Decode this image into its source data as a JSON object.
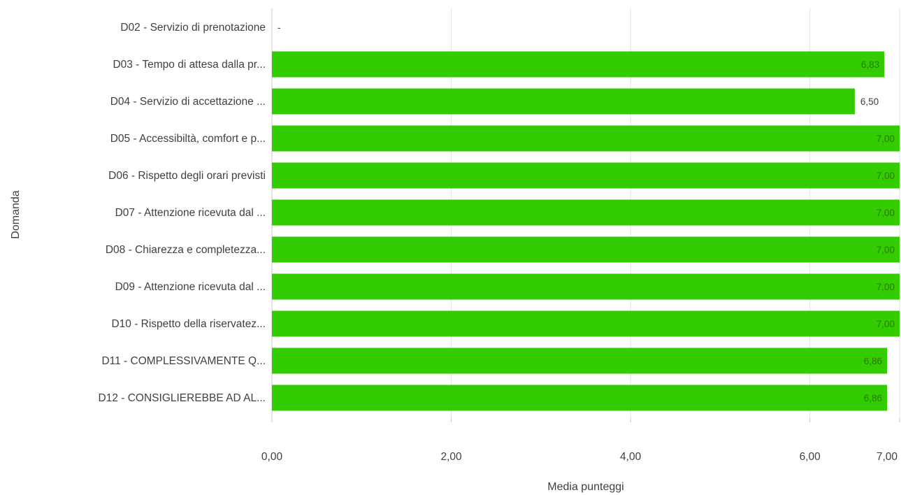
{
  "chart_data": {
    "type": "bar",
    "orientation": "horizontal",
    "categories": [
      "D02 - Servizio di prenotazione",
      "D03 - Tempo di attesa dalla pr...",
      "D04 - Servizio di accettazione ...",
      "D05 - Accessibiltà, comfort e p...",
      "D06 - Rispetto degli orari previsti",
      "D07 - Attenzione ricevuta dal ...",
      "D08 - Chiarezza e completezza...",
      "D09 - Attenzione ricevuta dal ...",
      "D10 - Rispetto della riservatez...",
      "D11 - COMPLESSIVAMENTE Q...",
      "D12 - CONSIGLIEREBBE AD AL..."
    ],
    "values": [
      null,
      6.83,
      6.5,
      7.0,
      7.0,
      7.0,
      7.0,
      7.0,
      7.0,
      6.86,
      6.86
    ],
    "data_labels": [
      "-",
      "6,83",
      "6,50",
      "7,00",
      "7,00",
      "7,00",
      "7,00",
      "7,00",
      "7,00",
      "6,86",
      "6,86"
    ],
    "xlabel": "Media punteggi",
    "ylabel": "Domanda",
    "xlim": [
      0,
      7
    ],
    "x_ticks": [
      0,
      2,
      4,
      6,
      7
    ],
    "x_tick_labels": [
      "0,00",
      "2,00",
      "4,00",
      "6,00",
      "7,00"
    ],
    "grid": true,
    "colors": {
      "bar": "#33cc00",
      "label_inside": "#2a7a00",
      "label_outside": "#404040"
    }
  }
}
